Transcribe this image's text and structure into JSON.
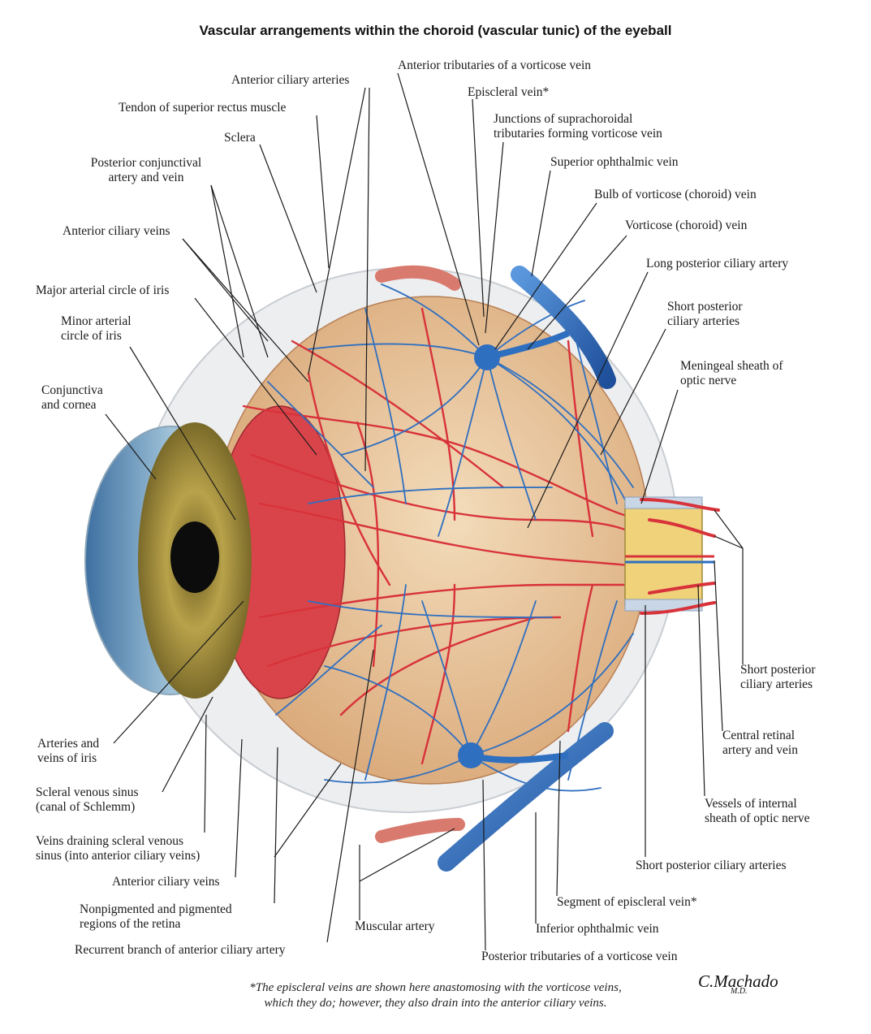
{
  "title": "Vascular arrangements within the choroid (vascular tunic) of the eyeball",
  "labels": {
    "anterior_tributaries_vorticose": "Anterior tributaries of a vorticose vein",
    "anterior_ciliary_arteries": "Anterior ciliary arteries",
    "episcleral_vein_star": "Episcleral vein*",
    "junctions_line1": "Junctions of suprachoroidal",
    "junctions_line2": "tributaries forming vorticose vein",
    "tendon_superior_rectus": "Tendon of superior rectus muscle",
    "sclera": "Sclera",
    "superior_ophthalmic_vein": "Superior ophthalmic vein",
    "posterior_conjunctival_line1": "Posterior conjunctival",
    "posterior_conjunctival_line2": "artery and vein",
    "bulb_of_vorticose": "Bulb of vorticose (choroid) vein",
    "vorticose_choroid_vein": "Vorticose (choroid) vein",
    "anterior_ciliary_veins_top": "Anterior ciliary veins",
    "long_posterior_ciliary_artery": "Long posterior ciliary artery",
    "major_arterial_circle": "Major arterial circle of iris",
    "short_posterior_top_line1": "Short posterior",
    "short_posterior_top_line2": "ciliary arteries",
    "minor_arterial_line1": "Minor arterial",
    "minor_arterial_line2": "circle of iris",
    "meningeal_line1": "Meningeal sheath of",
    "meningeal_line2": "optic nerve",
    "conjunctiva_line1": "Conjunctiva",
    "conjunctiva_line2": "and cornea",
    "short_posterior_right_line1": "Short posterior",
    "short_posterior_right_line2": "ciliary arteries",
    "central_retinal_line1": "Central retinal",
    "central_retinal_line2": "artery and vein",
    "arteries_veins_iris_line1": "Arteries and",
    "arteries_veins_iris_line2": "veins of iris",
    "scleral_sinus_line1": "Scleral venous sinus",
    "scleral_sinus_line2": "(canal of Schlemm)",
    "vessels_internal_line1": "Vessels of internal",
    "vessels_internal_line2": "sheath of optic nerve",
    "veins_draining_line1": "Veins draining scleral venous",
    "veins_draining_line2": "sinus (into anterior ciliary veins)",
    "short_posterior_bottom": "Short posterior ciliary arteries",
    "anterior_ciliary_veins_bottom": "Anterior ciliary veins",
    "segment_episcleral": "Segment of episcleral vein*",
    "nonpigmented_line1": "Nonpigmented and pigmented",
    "nonpigmented_line2": "regions of the retina",
    "muscular_artery": "Muscular artery",
    "inferior_ophthalmic_vein": "Inferior ophthalmic vein",
    "recurrent_branch": "Recurrent branch of anterior ciliary artery",
    "posterior_tributaries_vorticose": "Posterior tributaries of a vorticose vein"
  },
  "footnote_line1": "*The episcleral veins are shown here anastomosing with the vorticose veins,",
  "footnote_line2": "which they do; however, they also drain into the anterior ciliary veins.",
  "signature": "C.Machado",
  "signature_suffix": "M.D.",
  "colors": {
    "artery": "#d8323a",
    "vein": "#2f6fc0",
    "choroid": "#e9c9a0",
    "iris": "#b5a04a",
    "sclera": "#eef0f2",
    "optic_sheath": "#efd27a"
  }
}
